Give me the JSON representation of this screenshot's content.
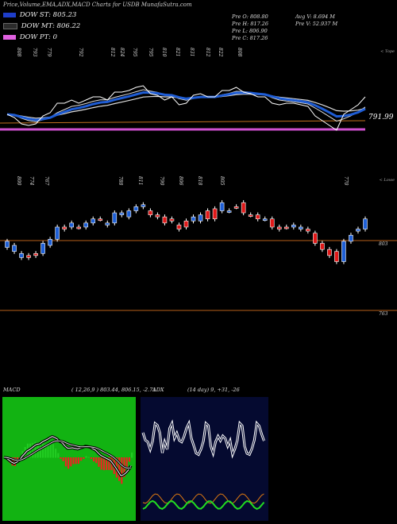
{
  "header": {
    "title": "Price,Volume,EMA,ADX,MACD Charts for USDB MunafaSutra.com"
  },
  "legend": [
    {
      "label": "DOW ST: 805.23",
      "color": "#1e3ec9"
    },
    {
      "label": "DOW MT: 806.22",
      "color": "#2b2b2b"
    },
    {
      "label": "DOW PT: 0",
      "color": "#e060e0"
    }
  ],
  "ohlc": {
    "pre_o": "Pre O: 808.80",
    "pre_h": "Pre H: 817.26",
    "pre_l": "Pre L: 806.90",
    "pre_c": "Pre C: 817.26",
    "avg_v": "Avg V: 8.694 M",
    "pre_v": "Pre V: 52.937 M"
  },
  "top_panel_name": "< Tope",
  "lower_panel_name": "< Lowe",
  "top_prices": [
    "808",
    "793",
    "779",
    "",
    "792",
    "812",
    "824",
    "795",
    "795",
    "810",
    "821",
    "831",
    "812",
    "822",
    "808"
  ],
  "low_prices": [
    "800",
    "774",
    "767",
    "",
    "788",
    "811",
    "790",
    "806",
    "818",
    "805",
    "770"
  ],
  "price_value_label": "791.99",
  "price_axis_labels": {
    "upper": "803",
    "lower": "763"
  },
  "macd": {
    "label": "MACD",
    "values": "( 12,26,9 ) 803.44, 806.15, -2.71"
  },
  "adx": {
    "label": "ADX",
    "values": "(14 day) 9, +31, -26"
  },
  "chart_data": {
    "type": "line",
    "title": "Price,Volume,EMA,ADX,MACD Charts for USDB",
    "candles": [
      {
        "o": 794,
        "c": 797,
        "up": true
      },
      {
        "o": 792,
        "c": 795,
        "up": true
      },
      {
        "o": 789,
        "c": 791,
        "up": true
      },
      {
        "o": 789,
        "c": 790,
        "up": false
      },
      {
        "o": 790,
        "c": 791,
        "up": false
      },
      {
        "o": 791,
        "c": 796,
        "up": true
      },
      {
        "o": 795,
        "c": 798,
        "up": true
      },
      {
        "o": 798,
        "c": 804,
        "up": true
      },
      {
        "o": 803,
        "c": 804,
        "up": false
      },
      {
        "o": 804,
        "c": 806,
        "up": true
      },
      {
        "o": 804,
        "c": 804,
        "up": false
      },
      {
        "o": 804,
        "c": 806,
        "up": true
      },
      {
        "o": 806,
        "c": 808,
        "up": true
      },
      {
        "o": 808,
        "c": 808,
        "up": false
      },
      {
        "o": 805,
        "c": 806,
        "up": true
      },
      {
        "o": 806,
        "c": 811,
        "up": true
      },
      {
        "o": 810,
        "c": 811,
        "up": true
      },
      {
        "o": 809,
        "c": 812,
        "up": true
      },
      {
        "o": 812,
        "c": 814,
        "up": true
      },
      {
        "o": 814,
        "c": 815,
        "up": true
      },
      {
        "o": 812,
        "c": 810,
        "up": false
      },
      {
        "o": 810,
        "c": 809,
        "up": false
      },
      {
        "o": 809,
        "c": 806,
        "up": false
      },
      {
        "o": 807,
        "c": 808,
        "up": false
      },
      {
        "o": 805,
        "c": 803,
        "up": false
      },
      {
        "o": 807,
        "c": 804,
        "up": false
      },
      {
        "o": 807,
        "c": 809,
        "up": true
      },
      {
        "o": 807,
        "c": 810,
        "up": true
      },
      {
        "o": 812,
        "c": 808,
        "up": false
      },
      {
        "o": 813,
        "c": 808,
        "up": false
      },
      {
        "o": 816,
        "c": 812,
        "up": true
      },
      {
        "o": 812,
        "c": 812,
        "up": true
      },
      {
        "o": 814,
        "c": 814,
        "up": false
      },
      {
        "o": 816,
        "c": 811,
        "up": false
      },
      {
        "o": 810,
        "c": 810,
        "up": false
      },
      {
        "o": 810,
        "c": 808,
        "up": false
      },
      {
        "o": 808,
        "c": 808,
        "up": true
      },
      {
        "o": 808,
        "c": 804,
        "up": false
      },
      {
        "o": 804,
        "c": 803,
        "up": false
      },
      {
        "o": 804,
        "c": 804,
        "up": false
      },
      {
        "o": 805,
        "c": 804,
        "up": true
      },
      {
        "o": 804,
        "c": 803,
        "up": true
      },
      {
        "o": 803,
        "c": 802,
        "up": false
      },
      {
        "o": 801,
        "c": 796,
        "up": false
      },
      {
        "o": 796,
        "c": 793,
        "up": false
      },
      {
        "o": 793,
        "c": 790,
        "up": false
      },
      {
        "o": 792,
        "c": 787,
        "up": false
      },
      {
        "o": 787,
        "c": 797,
        "up": true
      },
      {
        "o": 797,
        "c": 800,
        "up": true
      },
      {
        "o": 802,
        "c": 803,
        "up": true
      },
      {
        "o": 803,
        "c": 808,
        "up": true
      }
    ],
    "price_ylim": [
      763,
      820
    ],
    "ema_value": 791.99
  },
  "colors": {
    "up": "#1e5fd6",
    "down": "#e01818",
    "bg": "#000000",
    "ema_fast": "#1e5cd4",
    "ema_pt": "#d050d0",
    "macd_green": "#22cc22",
    "macd_red": "#ee2222",
    "adx_orange": "#e07a10",
    "adx_green": "#22dd22",
    "adx_white": "#ffffff",
    "macd_panel_bg": "#12b312",
    "adx_panel_bg": "#050a30"
  }
}
